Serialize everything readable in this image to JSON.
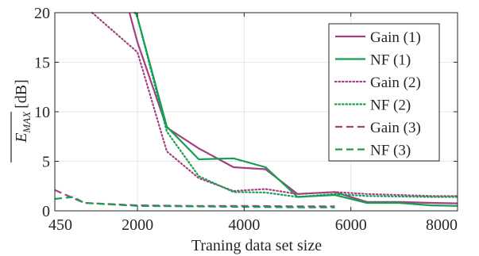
{
  "chart_data": {
    "type": "line",
    "xlabel": "Traning data set size",
    "ylabel_main": "E",
    "ylabel_sub": "MAX",
    "ylabel_unit": "[dB]",
    "xlim": [
      450,
      8000
    ],
    "ylim": [
      0,
      20
    ],
    "xticks": [
      450,
      2000,
      4000,
      6000,
      8000
    ],
    "yticks": [
      0,
      5,
      10,
      15,
      20
    ],
    "grid": true,
    "legend_position": "top-right",
    "series": [
      {
        "name": "Gain (1)",
        "color": "#a3407f",
        "dash": "solid",
        "points": [
          [
            1850,
            20
          ],
          [
            2000,
            17
          ],
          [
            2550,
            8.4
          ],
          [
            3150,
            6.3
          ],
          [
            3800,
            4.4
          ],
          [
            4400,
            4.2
          ],
          [
            5000,
            1.7
          ],
          [
            5700,
            1.9
          ],
          [
            6300,
            0.9
          ],
          [
            6900,
            0.9
          ],
          [
            7500,
            0.8
          ],
          [
            8000,
            0.75
          ]
        ]
      },
      {
        "name": "NF (1)",
        "color": "#14a050",
        "dash": "solid",
        "points": [
          [
            1980,
            20
          ],
          [
            2000,
            19.5
          ],
          [
            2550,
            8.5
          ],
          [
            3150,
            5.2
          ],
          [
            3800,
            5.3
          ],
          [
            4400,
            4.4
          ],
          [
            5000,
            1.4
          ],
          [
            5700,
            1.6
          ],
          [
            6300,
            0.8
          ],
          [
            6900,
            0.8
          ],
          [
            7500,
            0.55
          ],
          [
            8000,
            0.5
          ]
        ]
      },
      {
        "name": "Gain (2)",
        "color": "#a3407f",
        "dash": "dotted",
        "points": [
          [
            1150,
            20
          ],
          [
            2000,
            16
          ],
          [
            2550,
            6
          ],
          [
            3150,
            3.3
          ],
          [
            3800,
            2
          ],
          [
            4400,
            2.2
          ],
          [
            5000,
            1.7
          ],
          [
            5700,
            1.9
          ],
          [
            6300,
            1.7
          ],
          [
            6900,
            1.6
          ],
          [
            7500,
            1.5
          ],
          [
            8000,
            1.5
          ]
        ]
      },
      {
        "name": "NF (2)",
        "color": "#14a050",
        "dash": "dotted",
        "points": [
          [
            1950,
            20
          ],
          [
            2000,
            19.5
          ],
          [
            2550,
            8
          ],
          [
            3150,
            3.5
          ],
          [
            3800,
            1.9
          ],
          [
            4400,
            1.85
          ],
          [
            5000,
            1.4
          ],
          [
            5700,
            1.7
          ],
          [
            6300,
            1.5
          ],
          [
            6900,
            1.45
          ],
          [
            7500,
            1.4
          ],
          [
            8000,
            1.4
          ]
        ]
      },
      {
        "name": "Gain (3)",
        "color": "#a3407f",
        "dash": "dashed",
        "points": [
          [
            450,
            2.1
          ],
          [
            1000,
            0.8
          ],
          [
            2000,
            0.55
          ],
          [
            3000,
            0.5
          ],
          [
            4000,
            0.5
          ],
          [
            5000,
            0.45
          ],
          [
            5700,
            0.45
          ]
        ]
      },
      {
        "name": "NF (3)",
        "color": "#14a050",
        "dash": "dashed",
        "points": [
          [
            450,
            1.2
          ],
          [
            800,
            1.4
          ],
          [
            1000,
            0.8
          ],
          [
            2000,
            0.5
          ],
          [
            3000,
            0.45
          ],
          [
            4000,
            0.4
          ],
          [
            5000,
            0.35
          ],
          [
            5700,
            0.35
          ]
        ]
      }
    ]
  }
}
